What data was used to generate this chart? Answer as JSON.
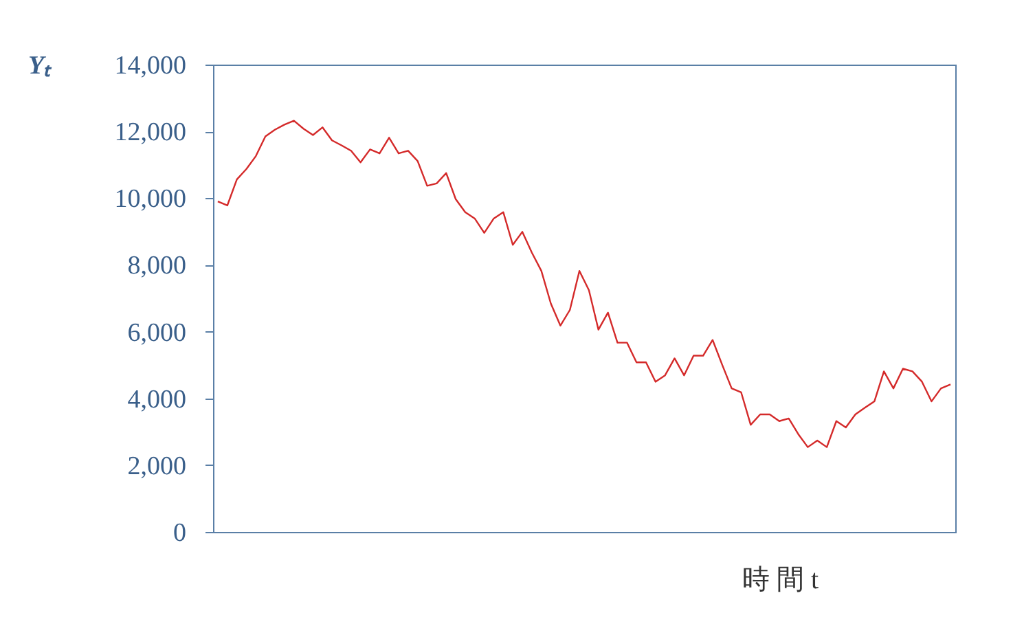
{
  "chart_data": {
    "type": "line",
    "ylabel": "Yₜ",
    "xlabel": "時 間  t",
    "categories": [
      null,
      null,
      null,
      null,
      null,
      null,
      null,
      null,
      null,
      null,
      null,
      null,
      null,
      null,
      null,
      null,
      null,
      null,
      null,
      null,
      null,
      null,
      null,
      null,
      null,
      null,
      null,
      null,
      null,
      null,
      null,
      null,
      null,
      null,
      null,
      null,
      null,
      null,
      null,
      null,
      null,
      null,
      null,
      null,
      null,
      null,
      null,
      null,
      null,
      null,
      null,
      null,
      null,
      null,
      null,
      null,
      null,
      null,
      null,
      null,
      null,
      null,
      null,
      null,
      null,
      null,
      null,
      null,
      null,
      null,
      null,
      null,
      null,
      null,
      null,
      null,
      null,
      null
    ],
    "series": [
      {
        "color": "#d42a2a",
        "values": [
          9900,
          9780,
          10560,
          10870,
          11260,
          11850,
          12050,
          12200,
          12320,
          12080,
          11890,
          12120,
          11730,
          11580,
          11420,
          11070,
          11460,
          11340,
          11810,
          11340,
          11420,
          11110,
          10370,
          10440,
          10750,
          9970,
          9580,
          9390,
          8960,
          9390,
          9580,
          8600,
          8990,
          8370,
          7820,
          6840,
          6180,
          6650,
          7820,
          7240,
          6060,
          6570,
          5670,
          5670,
          5080,
          5080,
          4500,
          4690,
          5200,
          4690,
          5280,
          5280,
          5750,
          5010,
          4300,
          4180,
          3210,
          3520,
          3520,
          3320,
          3400,
          2930,
          2540,
          2740,
          2540,
          3320,
          3130,
          3520,
          3720,
          3910,
          4810,
          4300,
          4890,
          4810,
          4500,
          3910,
          4300,
          4420
        ]
      }
    ],
    "ylim": [
      0,
      14000
    ],
    "yticks": [
      0,
      {
        "value": 2000,
        "label": "2,000"
      },
      {
        "value": 4000,
        "label": "4,000"
      },
      {
        "value": 6000,
        "label": "6,000"
      },
      {
        "value": 8000,
        "label": "8,000"
      },
      {
        "value": 10000,
        "label": "10,000"
      },
      {
        "value": 12000,
        "label": "12,000"
      },
      {
        "value": 14000,
        "label": "14,000"
      }
    ],
    "tick_labels": "y",
    "grid": false,
    "legend": false,
    "marker": "none",
    "line_style": "solid"
  }
}
